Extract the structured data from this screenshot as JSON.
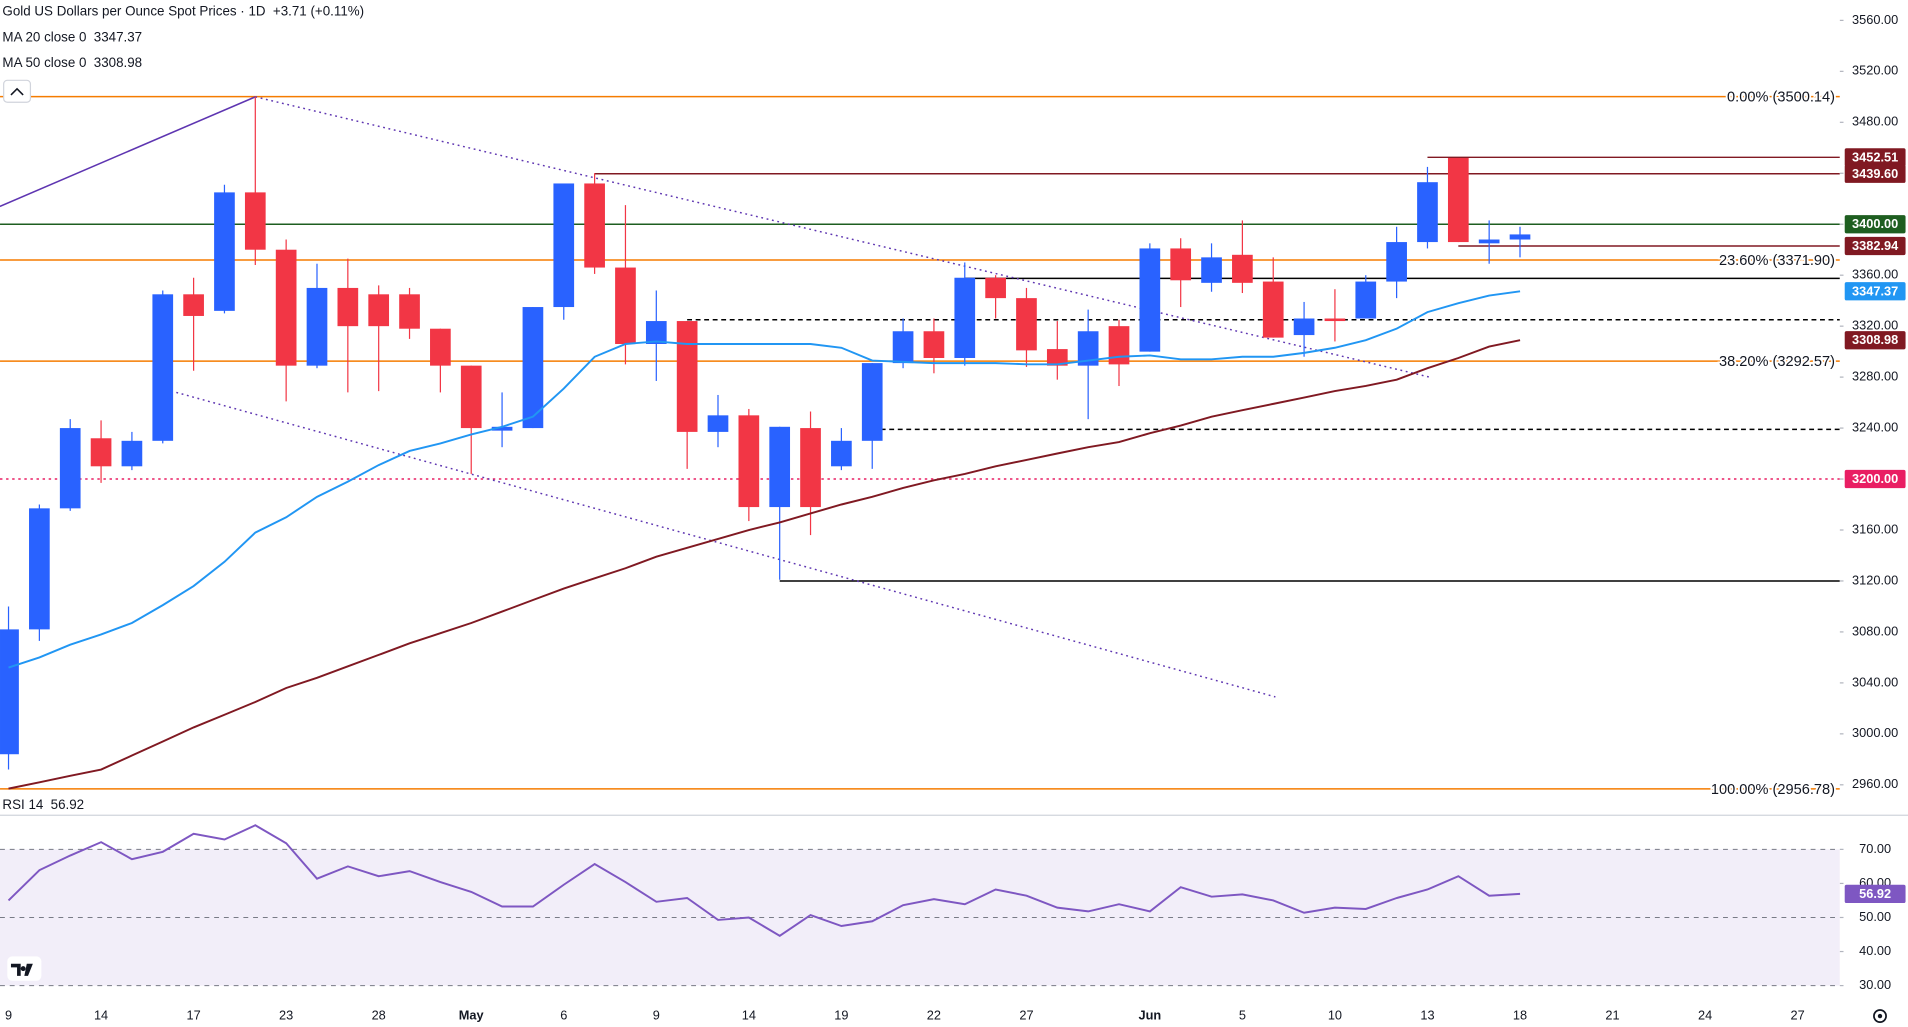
{
  "chart_data": [
    {
      "type": "candlestick",
      "title": "Gold US Dollars per Ounce Spot Prices · 1D",
      "change": "+3.71 (+0.11%)",
      "categories": [
        "9",
        null,
        null,
        "14",
        null,
        null,
        "17",
        null,
        null,
        "23",
        null,
        null,
        "28",
        null,
        null,
        "May",
        null,
        null,
        "6",
        null,
        null,
        "9",
        null,
        null,
        "14",
        null,
        null,
        "19",
        null,
        null,
        "22",
        null,
        null,
        "27",
        null,
        null,
        null,
        "Jun",
        null,
        null,
        "5",
        null,
        null,
        "10",
        null,
        null,
        "13",
        null,
        null,
        "18",
        null,
        null,
        "21",
        null,
        null,
        "24",
        null,
        null,
        "27"
      ],
      "open": [
        2984,
        3082,
        3177,
        3232,
        3210,
        3230,
        3345,
        3332,
        3425,
        3380,
        3289,
        3350,
        3345,
        3345,
        3318,
        3289,
        3238,
        3240,
        3335,
        3432,
        3366,
        3306,
        3324,
        3237,
        3250,
        3178,
        3240,
        3210,
        3230,
        3291,
        3316,
        3295,
        3358,
        3342,
        3302,
        3289,
        3320,
        3300,
        3381,
        3354,
        3376,
        3355,
        3313,
        3326,
        3326,
        3355,
        3386,
        3452,
        3385,
        3388,
        null,
        null,
        null,
        null,
        null,
        null,
        null,
        null,
        null
      ],
      "high": [
        3100,
        3180,
        3247,
        3246,
        3237,
        3348,
        3358,
        3431,
        3500,
        3388,
        3369,
        3373,
        3352,
        3350,
        3318,
        3289,
        3268,
        3335,
        3432,
        3440,
        3415,
        3348,
        3324,
        3266,
        3255,
        3241,
        3253,
        3240,
        3291,
        3326,
        3326,
        3370,
        3360,
        3350,
        3324,
        3333,
        3325,
        3385,
        3389,
        3385,
        3403,
        3374,
        3339,
        3349,
        3360,
        3398,
        3445,
        3452,
        3403,
        3398,
        null,
        null,
        null,
        null,
        null,
        null,
        null,
        null,
        null
      ],
      "low": [
        2972,
        3073,
        3175,
        3197,
        3207,
        3228,
        3285,
        3330,
        3368,
        3261,
        3287,
        3268,
        3269,
        3310,
        3268,
        3204,
        3225,
        3240,
        3325,
        3361,
        3290,
        3277,
        3208,
        3225,
        3167,
        3121,
        3156,
        3207,
        3208,
        3287,
        3283,
        3289,
        3326,
        3288,
        3278,
        3247,
        3273,
        3300,
        3335,
        3347,
        3346,
        3311,
        3296,
        3308,
        3326,
        3342,
        3381,
        3386,
        3369,
        3374,
        null,
        null,
        null,
        null,
        null,
        null,
        null,
        null,
        null
      ],
      "close": [
        3082,
        3177,
        3240,
        3210,
        3230,
        3345,
        3328,
        3425,
        3380,
        3289,
        3350,
        3320,
        3320,
        3318,
        3289,
        3240,
        3241,
        3335,
        3432,
        3366,
        3306,
        3324,
        3237,
        3250,
        3178,
        3241,
        3178,
        3230,
        3291,
        3316,
        3295,
        3358,
        3342,
        3301,
        3289,
        3316,
        3290,
        3381,
        3356,
        3374,
        3354,
        3311,
        3326,
        3324,
        3355,
        3386,
        3433,
        3386,
        3388,
        3392,
        null,
        null,
        null,
        null,
        null,
        null,
        null,
        null,
        null
      ],
      "up_color": "#2962ff",
      "down_color": "#f23645",
      "series": [
        {
          "name": "MA 20 close 0",
          "color": "#2196f3",
          "values": [
            3052,
            3060,
            3070,
            3078,
            3087,
            3101,
            3116,
            3135,
            3158,
            3170,
            3186,
            3198,
            3211,
            3222,
            3228,
            3235,
            3241,
            3249,
            3271,
            3296,
            3306,
            3308,
            3306,
            3306,
            3306,
            3306,
            3306,
            3303,
            3293,
            3292,
            3291,
            3291,
            3291,
            3290,
            3290,
            3293,
            3296,
            3297,
            3294,
            3294,
            3296,
            3296,
            3299,
            3303,
            3309,
            3318,
            3331,
            3338,
            3344,
            3347.37,
            null,
            null,
            null,
            null,
            null,
            null,
            null,
            null,
            null
          ]
        },
        {
          "name": "MA 50 close 0",
          "color": "#801922",
          "values": [
            2957,
            2962,
            2967,
            2972,
            2983,
            2994,
            3005,
            3015,
            3025,
            3036,
            3044,
            3053,
            3062,
            3071,
            3079,
            3087,
            3096,
            3105,
            3114,
            3122,
            3130,
            3139,
            3146,
            3153,
            3160,
            3166,
            3173,
            3180,
            3186,
            3193,
            3199,
            3204,
            3210,
            3215,
            3220,
            3225,
            3229,
            3236,
            3242,
            3249,
            3254,
            3259,
            3264,
            3269,
            3273,
            3278,
            3287,
            3295,
            3304,
            3308.98,
            null,
            null,
            null,
            null,
            null,
            null,
            null,
            null,
            null
          ]
        }
      ],
      "ylim": [
        2938,
        3576
      ],
      "yticks": [
        {
          "value": 2960,
          "label": "2960.00"
        },
        {
          "value": 3000,
          "label": "3000.00"
        },
        {
          "value": 3040,
          "label": "3040.00"
        },
        {
          "value": 3080,
          "label": "3080.00"
        },
        {
          "value": 3120,
          "label": "3120.00"
        },
        {
          "value": 3160,
          "label": "3160.00"
        },
        {
          "value": 3200,
          "label": "3200.00"
        },
        {
          "value": 3240,
          "label": "3240.00"
        },
        {
          "value": 3280,
          "label": "3280.00"
        },
        {
          "value": 3320,
          "label": "3320.00"
        },
        {
          "value": 3360,
          "label": "3360.00"
        },
        {
          "value": 3400,
          "label": "3400.00"
        },
        {
          "value": 3440,
          "label": "3440.00"
        },
        {
          "value": 3480,
          "label": "3480.00"
        },
        {
          "value": 3520,
          "label": "3520.00"
        },
        {
          "value": 3560,
          "label": "3560.00"
        }
      ],
      "levels": [
        {
          "value": 3500.14,
          "label": "0.00% (3500.14)",
          "color": "#f57c00"
        },
        {
          "value": 3452.51,
          "tag": "3452.51",
          "color": "#801922"
        },
        {
          "value": 3439.6,
          "tag": "3439.60",
          "color": "#801922"
        },
        {
          "value": 3400,
          "tag": "3400.00",
          "color": "#1e5e20"
        },
        {
          "value": 3382.94,
          "tag": "3382.94",
          "color": "#801922"
        },
        {
          "value": 3371.9,
          "label": "23.60% (3371.90)",
          "color": "#f57c00"
        },
        {
          "value": 3357.5,
          "color": "#000000"
        },
        {
          "value": 3325,
          "color": "#000000",
          "dash": true
        },
        {
          "value": 3292.57,
          "label": "38.20% (3292.57)",
          "color": "#f57c00"
        },
        {
          "value": 3239,
          "color": "#000000",
          "dash": true
        },
        {
          "value": 3200,
          "tag": "3200.00",
          "color": "#e91e63",
          "dash": true
        },
        {
          "value": 3120,
          "color": "#000000"
        },
        {
          "value": 2956.78,
          "label": "100.00% (2956.78)",
          "color": "#f57c00"
        }
      ],
      "trendlines": [
        {
          "values": [
            3414,
            3500
          ],
          "color": "#5e35b1"
        },
        {
          "values": [
            3500,
            3280
          ],
          "color": "#5e35b1",
          "dash": true
        },
        {
          "values": [
            3268,
            3029
          ],
          "color": "#5e35b1",
          "dash": true
        }
      ]
    },
    {
      "type": "line",
      "series": [
        {
          "name": "RSI 14",
          "color": "#7e57c2",
          "values": [
            55.0,
            63.9,
            68.2,
            72.1,
            67.1,
            69.3,
            74.6,
            72.9,
            77.1,
            71.8,
            61.4,
            65.0,
            62.1,
            63.6,
            60.4,
            57.5,
            53.2,
            53.2,
            59.6,
            65.7,
            60.4,
            54.6,
            55.7,
            49.3,
            50.0,
            44.6,
            50.7,
            47.5,
            48.9,
            53.6,
            55.4,
            53.9,
            58.2,
            56.4,
            52.9,
            51.8,
            53.9,
            51.8,
            58.9,
            56.1,
            56.8,
            55.0,
            51.4,
            52.9,
            52.5,
            55.7,
            58.2,
            62.1,
            56.4,
            56.92,
            null,
            null,
            null,
            null,
            null,
            null,
            null,
            null,
            null
          ]
        }
      ],
      "ylim": [
        25.7,
        79.3
      ],
      "yticks": [
        {
          "value": 30,
          "label": "30.00"
        },
        {
          "value": 40,
          "label": "40.00"
        },
        {
          "value": 50,
          "label": "50.00"
        },
        {
          "value": 60,
          "label": "60.00"
        },
        {
          "value": 70,
          "label": "70.00"
        }
      ],
      "levels": [
        70,
        50,
        30
      ]
    }
  ]
}
